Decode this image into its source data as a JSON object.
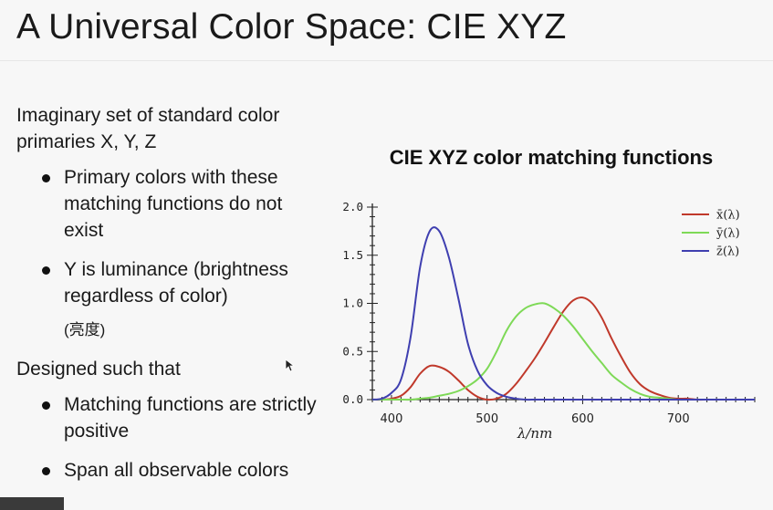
{
  "slide": {
    "title": "A Universal Color Space: CIE XYZ",
    "intro": "Imaginary set of standard color primaries X, Y, Z",
    "bullets1": [
      "Primary colors with these matching functions do not exist",
      "Y is luminance (brightness regardless of color)"
    ],
    "note": "(亮度)",
    "para2": "Designed such that",
    "bullets2": [
      "Matching functions are strictly positive",
      "Span all observable colors"
    ]
  },
  "colors": {
    "x": "#c0392b",
    "y": "#7ed957",
    "z": "#3f3fb0"
  },
  "chart_data": {
    "type": "line",
    "title": "CIE XYZ color matching functions",
    "xlabel": "λ/nm",
    "ylabel": "",
    "xlim": [
      380,
      780
    ],
    "ylim": [
      0,
      2.0
    ],
    "xticks": [
      "400",
      "500",
      "600",
      "700"
    ],
    "yticks": [
      "0.0",
      "0.5",
      "1.0",
      "1.5",
      "2.0"
    ],
    "legend": "top-right",
    "x": [
      380,
      390,
      400,
      410,
      420,
      430,
      440,
      450,
      460,
      470,
      480,
      490,
      500,
      510,
      520,
      530,
      540,
      550,
      560,
      570,
      580,
      590,
      600,
      610,
      620,
      630,
      640,
      650,
      660,
      670,
      680,
      690,
      700,
      710,
      720,
      730,
      740,
      750,
      760,
      770,
      780
    ],
    "series": [
      {
        "name": "x̄(λ)",
        "color": "#c0392b",
        "values": [
          0.0,
          0.0,
          0.01,
          0.04,
          0.13,
          0.27,
          0.35,
          0.34,
          0.29,
          0.2,
          0.1,
          0.03,
          0.0,
          0.01,
          0.06,
          0.16,
          0.29,
          0.43,
          0.59,
          0.76,
          0.92,
          1.03,
          1.06,
          1.0,
          0.85,
          0.64,
          0.45,
          0.28,
          0.16,
          0.09,
          0.05,
          0.02,
          0.01,
          0.01,
          0.0,
          0.0,
          0.0,
          0.0,
          0.0,
          0.0,
          0.0
        ]
      },
      {
        "name": "ȳ(λ)",
        "color": "#7ed957",
        "values": [
          0.0,
          0.0,
          0.0,
          0.0,
          0.0,
          0.01,
          0.02,
          0.04,
          0.06,
          0.09,
          0.14,
          0.21,
          0.32,
          0.5,
          0.71,
          0.86,
          0.95,
          0.99,
          1.0,
          0.95,
          0.87,
          0.76,
          0.63,
          0.5,
          0.38,
          0.26,
          0.18,
          0.11,
          0.06,
          0.03,
          0.02,
          0.01,
          0.0,
          0.0,
          0.0,
          0.0,
          0.0,
          0.0,
          0.0,
          0.0,
          0.0
        ]
      },
      {
        "name": "z̄(λ)",
        "color": "#3f3fb0",
        "values": [
          0.0,
          0.01,
          0.07,
          0.21,
          0.65,
          1.38,
          1.75,
          1.75,
          1.48,
          1.05,
          0.58,
          0.3,
          0.15,
          0.07,
          0.03,
          0.01,
          0.0,
          0.0,
          0.0,
          0.0,
          0.0,
          0.0,
          0.0,
          0.0,
          0.0,
          0.0,
          0.0,
          0.0,
          0.0,
          0.0,
          0.0,
          0.0,
          0.0,
          0.0,
          0.0,
          0.0,
          0.0,
          0.0,
          0.0,
          0.0,
          0.0
        ]
      }
    ]
  }
}
